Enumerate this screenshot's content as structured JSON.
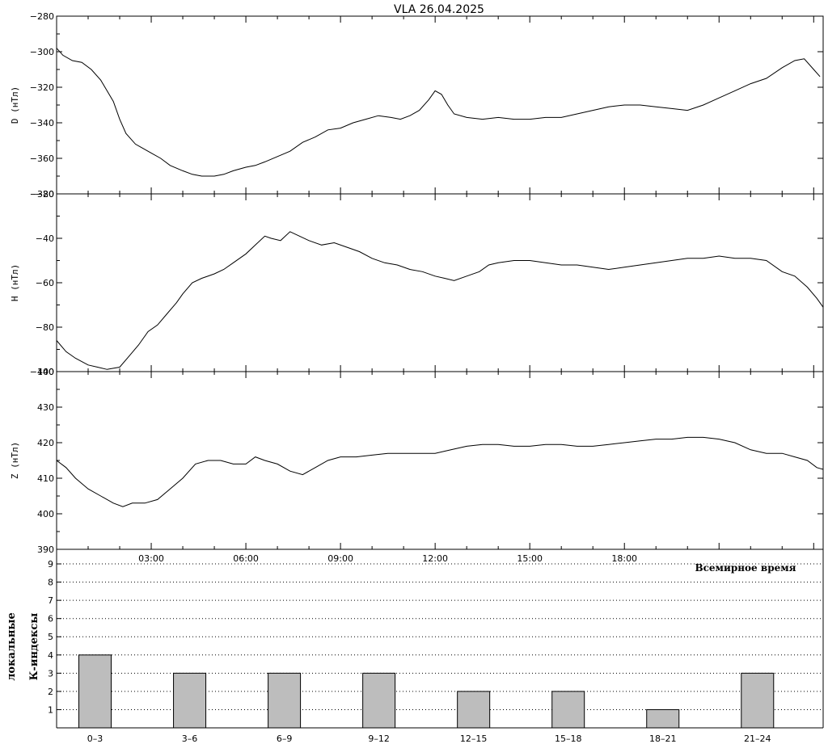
{
  "chart_data": [
    {
      "type": "line",
      "panel": "D",
      "title": "VLA   26.04.2025",
      "ylabel": "D (нТл)",
      "ylim": [
        -380,
        -280
      ],
      "yticks": [
        -380,
        -360,
        -340,
        -320,
        -300,
        -280
      ],
      "x_unit": "hours UT",
      "xlim": [
        0,
        24
      ],
      "points": [
        [
          0.0,
          -298
        ],
        [
          0.2,
          -302
        ],
        [
          0.5,
          -305
        ],
        [
          0.8,
          -306
        ],
        [
          1.1,
          -310
        ],
        [
          1.4,
          -316
        ],
        [
          1.6,
          -322
        ],
        [
          1.8,
          -328
        ],
        [
          2.0,
          -338
        ],
        [
          2.2,
          -346
        ],
        [
          2.5,
          -352
        ],
        [
          2.7,
          -354
        ],
        [
          3.0,
          -357
        ],
        [
          3.3,
          -360
        ],
        [
          3.6,
          -364
        ],
        [
          4.0,
          -367
        ],
        [
          4.3,
          -369
        ],
        [
          4.6,
          -370
        ],
        [
          5.0,
          -370
        ],
        [
          5.3,
          -369
        ],
        [
          5.6,
          -367
        ],
        [
          6.0,
          -365
        ],
        [
          6.3,
          -364
        ],
        [
          6.6,
          -362
        ],
        [
          7.0,
          -359
        ],
        [
          7.4,
          -356
        ],
        [
          7.8,
          -351
        ],
        [
          8.2,
          -348
        ],
        [
          8.6,
          -344
        ],
        [
          9.0,
          -343
        ],
        [
          9.4,
          -340
        ],
        [
          9.8,
          -338
        ],
        [
          10.2,
          -336
        ],
        [
          10.6,
          -337
        ],
        [
          10.9,
          -338
        ],
        [
          11.2,
          -336
        ],
        [
          11.5,
          -333
        ],
        [
          11.8,
          -327
        ],
        [
          12.0,
          -322
        ],
        [
          12.2,
          -324
        ],
        [
          12.4,
          -330
        ],
        [
          12.6,
          -335
        ],
        [
          13.0,
          -337
        ],
        [
          13.5,
          -338
        ],
        [
          14.0,
          -337
        ],
        [
          14.5,
          -338
        ],
        [
          15.0,
          -338
        ],
        [
          15.5,
          -337
        ],
        [
          16.0,
          -337
        ],
        [
          16.5,
          -335
        ],
        [
          17.0,
          -333
        ],
        [
          17.5,
          -331
        ],
        [
          18.0,
          -330
        ],
        [
          18.5,
          -330
        ],
        [
          19.0,
          -331
        ],
        [
          19.5,
          -332
        ],
        [
          20.0,
          -333
        ],
        [
          20.5,
          -330
        ],
        [
          21.0,
          -326
        ],
        [
          21.5,
          -322
        ],
        [
          22.0,
          -318
        ],
        [
          22.5,
          -315
        ],
        [
          23.0,
          -309
        ],
        [
          23.4,
          -305
        ],
        [
          23.7,
          -304
        ],
        [
          24.0,
          -310
        ],
        [
          24.2,
          -314
        ]
      ]
    },
    {
      "type": "line",
      "panel": "H",
      "ylabel": "H (нТл)",
      "ylim": [
        -100,
        -20
      ],
      "yticks": [
        -100,
        -80,
        -60,
        -40,
        -20
      ],
      "x_unit": "hours UT",
      "xlim": [
        0,
        24
      ],
      "points": [
        [
          0.0,
          -86
        ],
        [
          0.3,
          -91
        ],
        [
          0.6,
          -94
        ],
        [
          1.0,
          -97
        ],
        [
          1.3,
          -98
        ],
        [
          1.6,
          -99
        ],
        [
          2.0,
          -98
        ],
        [
          2.3,
          -93
        ],
        [
          2.6,
          -88
        ],
        [
          2.9,
          -82
        ],
        [
          3.2,
          -79
        ],
        [
          3.5,
          -74
        ],
        [
          3.8,
          -69
        ],
        [
          4.0,
          -65
        ],
        [
          4.3,
          -60
        ],
        [
          4.6,
          -58
        ],
        [
          5.0,
          -56
        ],
        [
          5.3,
          -54
        ],
        [
          5.6,
          -51
        ],
        [
          6.0,
          -47
        ],
        [
          6.3,
          -43
        ],
        [
          6.6,
          -39
        ],
        [
          6.8,
          -40
        ],
        [
          7.1,
          -41
        ],
        [
          7.4,
          -37
        ],
        [
          7.7,
          -39
        ],
        [
          8.0,
          -41
        ],
        [
          8.4,
          -43
        ],
        [
          8.8,
          -42
        ],
        [
          9.2,
          -44
        ],
        [
          9.6,
          -46
        ],
        [
          10.0,
          -49
        ],
        [
          10.4,
          -51
        ],
        [
          10.8,
          -52
        ],
        [
          11.2,
          -54
        ],
        [
          11.6,
          -55
        ],
        [
          12.0,
          -57
        ],
        [
          12.3,
          -58
        ],
        [
          12.6,
          -59
        ],
        [
          13.0,
          -57
        ],
        [
          13.4,
          -55
        ],
        [
          13.7,
          -52
        ],
        [
          14.0,
          -51
        ],
        [
          14.5,
          -50
        ],
        [
          15.0,
          -50
        ],
        [
          15.5,
          -51
        ],
        [
          16.0,
          -52
        ],
        [
          16.5,
          -52
        ],
        [
          17.0,
          -53
        ],
        [
          17.5,
          -54
        ],
        [
          18.0,
          -53
        ],
        [
          18.5,
          -52
        ],
        [
          19.0,
          -51
        ],
        [
          19.5,
          -50
        ],
        [
          20.0,
          -49
        ],
        [
          20.5,
          -49
        ],
        [
          21.0,
          -48
        ],
        [
          21.5,
          -49
        ],
        [
          22.0,
          -49
        ],
        [
          22.5,
          -50
        ],
        [
          23.0,
          -55
        ],
        [
          23.4,
          -57
        ],
        [
          23.8,
          -62
        ],
        [
          24.1,
          -67
        ],
        [
          24.3,
          -71
        ]
      ]
    },
    {
      "type": "line",
      "panel": "Z",
      "ylabel": "Z (нТл)",
      "ylim": [
        390,
        440
      ],
      "yticks": [
        390,
        400,
        410,
        420,
        430,
        440
      ],
      "xticks": [
        "03:00",
        "06:00",
        "09:00",
        "12:00",
        "15:00",
        "18:00"
      ],
      "x_unit": "hours UT",
      "xlim": [
        0,
        24
      ],
      "points": [
        [
          0.0,
          415
        ],
        [
          0.3,
          413
        ],
        [
          0.6,
          410
        ],
        [
          1.0,
          407
        ],
        [
          1.4,
          405
        ],
        [
          1.8,
          403
        ],
        [
          2.1,
          402
        ],
        [
          2.4,
          403
        ],
        [
          2.8,
          403
        ],
        [
          3.2,
          404
        ],
        [
          3.6,
          407
        ],
        [
          4.0,
          410
        ],
        [
          4.4,
          414
        ],
        [
          4.8,
          415
        ],
        [
          5.2,
          415
        ],
        [
          5.6,
          414
        ],
        [
          6.0,
          414
        ],
        [
          6.3,
          416
        ],
        [
          6.6,
          415
        ],
        [
          7.0,
          414
        ],
        [
          7.4,
          412
        ],
        [
          7.8,
          411
        ],
        [
          8.2,
          413
        ],
        [
          8.6,
          415
        ],
        [
          9.0,
          416
        ],
        [
          9.5,
          416
        ],
        [
          10.0,
          416.5
        ],
        [
          10.5,
          417
        ],
        [
          11.0,
          417
        ],
        [
          11.5,
          417
        ],
        [
          12.0,
          417
        ],
        [
          12.5,
          418
        ],
        [
          13.0,
          419
        ],
        [
          13.5,
          419.5
        ],
        [
          14.0,
          419.5
        ],
        [
          14.5,
          419
        ],
        [
          15.0,
          419
        ],
        [
          15.5,
          419.5
        ],
        [
          16.0,
          419.5
        ],
        [
          16.5,
          419
        ],
        [
          17.0,
          419
        ],
        [
          17.5,
          419.5
        ],
        [
          18.0,
          420
        ],
        [
          18.5,
          420.5
        ],
        [
          19.0,
          421
        ],
        [
          19.5,
          421
        ],
        [
          20.0,
          421.5
        ],
        [
          20.5,
          421.5
        ],
        [
          21.0,
          421
        ],
        [
          21.5,
          420
        ],
        [
          22.0,
          418
        ],
        [
          22.5,
          417
        ],
        [
          23.0,
          417
        ],
        [
          23.4,
          416
        ],
        [
          23.8,
          415
        ],
        [
          24.1,
          413
        ],
        [
          24.3,
          412.5
        ]
      ]
    },
    {
      "type": "bar",
      "panel": "K",
      "ylabel": "локальные К-индексы",
      "xlabel": "Всемирное время",
      "ylim": [
        0,
        9.8
      ],
      "yticks": [
        1,
        2,
        3,
        4,
        5,
        6,
        7,
        8,
        9
      ],
      "grid": "dotted horizontal",
      "categories": [
        "0–3",
        "3–6",
        "6–9",
        "9–12",
        "12–15",
        "15–18",
        "18–21",
        "21–24"
      ],
      "values": [
        4,
        3,
        3,
        3,
        2,
        2,
        1,
        3
      ],
      "bar_color": "#bdbdbd"
    }
  ]
}
